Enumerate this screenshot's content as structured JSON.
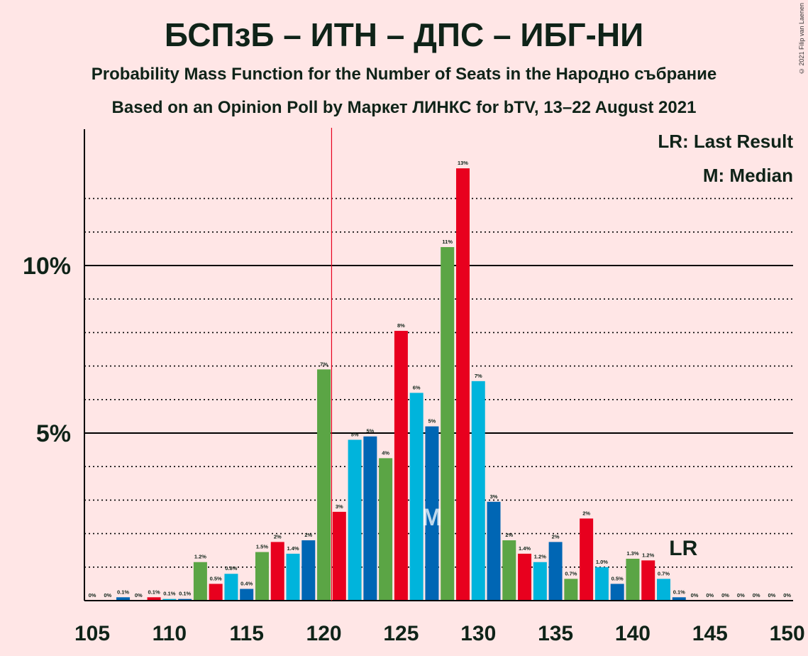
{
  "title": "БСПзБ – ИТН – ДПС – ИБГ-НИ",
  "subtitle1": "Probability Mass Function for the Number of Seats in the Народно събрание",
  "subtitle2": "Based on an Opinion Poll by Маркет ЛИНКС for bTV, 13–22 August 2021",
  "copyright": "© 2021 Filip van Laenen",
  "legend": {
    "lr": "LR: Last Result",
    "m": "M: Median"
  },
  "markers": {
    "last_result_label": "LR",
    "median_label": "M"
  },
  "colors": {
    "background": "#FFE6E6",
    "red": "#E8001E",
    "cyan": "#00B4DC",
    "blue": "#0066B4",
    "green": "#5BA545",
    "text": "#0F2318"
  },
  "chart_data": {
    "type": "bar",
    "xlabel": "",
    "ylabel": "",
    "ylim": [
      0,
      14
    ],
    "xlim": [
      105,
      150
    ],
    "x_ticks": [
      "105",
      "110",
      "115",
      "120",
      "125",
      "130",
      "135",
      "140",
      "145",
      "150"
    ],
    "y_ticks": [
      {
        "value": 5,
        "label": "5%"
      },
      {
        "value": 10,
        "label": "10%"
      }
    ],
    "last_result": 120,
    "median": 127,
    "color_cycle": [
      "red",
      "cyan",
      "blue",
      "green"
    ],
    "bars": [
      {
        "seats": 105,
        "value": 0.0,
        "label": "0%"
      },
      {
        "seats": 106,
        "value": 0.0,
        "label": "0%"
      },
      {
        "seats": 107,
        "value": 0.1,
        "label": "0.1%"
      },
      {
        "seats": 108,
        "value": 0.0,
        "label": "0%"
      },
      {
        "seats": 109,
        "value": 0.1,
        "label": "0.1%"
      },
      {
        "seats": 110,
        "value": 0.05,
        "label": "0.1%"
      },
      {
        "seats": 111,
        "value": 0.05,
        "label": "0.1%"
      },
      {
        "seats": 112,
        "value": 1.15,
        "label": "1.2%"
      },
      {
        "seats": 113,
        "value": 0.5,
        "label": "0.5%"
      },
      {
        "seats": 114,
        "value": 0.8,
        "label": "0.8%"
      },
      {
        "seats": 115,
        "value": 0.35,
        "label": "0.4%"
      },
      {
        "seats": 116,
        "value": 1.45,
        "label": "1.5%"
      },
      {
        "seats": 117,
        "value": 1.75,
        "label": "2%"
      },
      {
        "seats": 118,
        "value": 1.4,
        "label": "1.4%"
      },
      {
        "seats": 119,
        "value": 1.8,
        "label": "2%"
      },
      {
        "seats": 120,
        "value": 6.9,
        "label": "7%"
      },
      {
        "seats": 121,
        "value": 2.65,
        "label": "3%"
      },
      {
        "seats": 122,
        "value": 4.8,
        "label": "5%"
      },
      {
        "seats": 123,
        "value": 4.9,
        "label": "5%"
      },
      {
        "seats": 124,
        "value": 4.25,
        "label": "4%"
      },
      {
        "seats": 125,
        "value": 8.05,
        "label": "8%"
      },
      {
        "seats": 126,
        "value": 6.2,
        "label": "6%"
      },
      {
        "seats": 127,
        "value": 5.2,
        "label": "5%"
      },
      {
        "seats": 128,
        "value": 10.55,
        "label": "11%"
      },
      {
        "seats": 129,
        "value": 12.9,
        "label": "13%"
      },
      {
        "seats": 130,
        "value": 6.55,
        "label": "7%"
      },
      {
        "seats": 131,
        "value": 2.95,
        "label": "3%"
      },
      {
        "seats": 132,
        "value": 1.8,
        "label": "2%"
      },
      {
        "seats": 133,
        "value": 1.4,
        "label": "1.4%"
      },
      {
        "seats": 134,
        "value": 1.15,
        "label": "1.2%"
      },
      {
        "seats": 135,
        "value": 1.75,
        "label": "2%"
      },
      {
        "seats": 136,
        "value": 0.65,
        "label": "0.7%"
      },
      {
        "seats": 137,
        "value": 2.45,
        "label": "2%"
      },
      {
        "seats": 138,
        "value": 1.0,
        "label": "1.0%"
      },
      {
        "seats": 139,
        "value": 0.5,
        "label": "0.5%"
      },
      {
        "seats": 140,
        "value": 1.25,
        "label": "1.3%"
      },
      {
        "seats": 141,
        "value": 1.2,
        "label": "1.2%"
      },
      {
        "seats": 142,
        "value": 0.65,
        "label": "0.7%"
      },
      {
        "seats": 143,
        "value": 0.1,
        "label": "0.1%"
      },
      {
        "seats": 144,
        "value": 0.0,
        "label": "0%"
      },
      {
        "seats": 145,
        "value": 0.0,
        "label": "0%"
      },
      {
        "seats": 146,
        "value": 0.0,
        "label": "0%"
      },
      {
        "seats": 147,
        "value": 0.0,
        "label": "0%"
      },
      {
        "seats": 148,
        "value": 0.0,
        "label": "0%"
      },
      {
        "seats": 149,
        "value": 0.0,
        "label": "0%"
      },
      {
        "seats": 150,
        "value": 0.0,
        "label": "0%"
      }
    ]
  }
}
